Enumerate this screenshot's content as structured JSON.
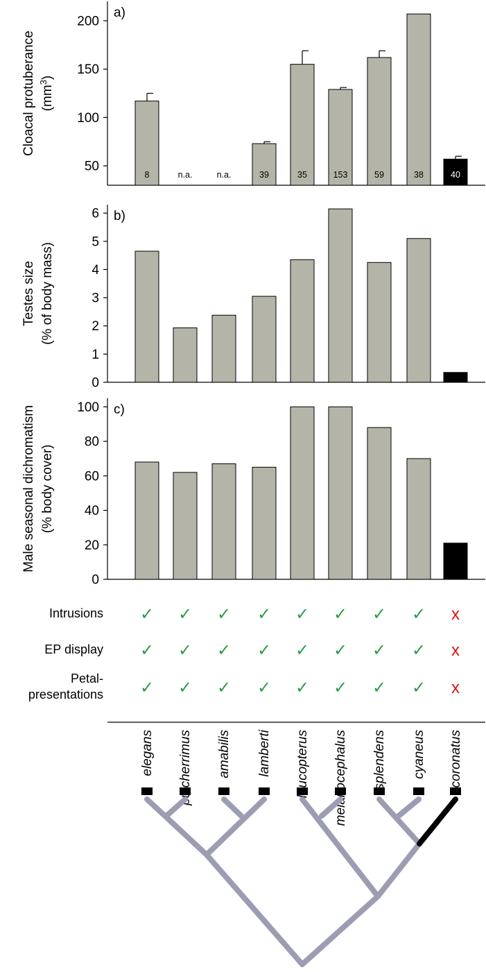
{
  "colors": {
    "bar_default": "#b4b5a8",
    "bar_highlight": "#000000",
    "check": "#2e9a4a",
    "cross": "#e01010",
    "tree": "#9c9cb3"
  },
  "species": [
    "elegans",
    "pulcherrimus",
    "amabilis",
    "lamberti",
    "leucopterus",
    "melanocephalus",
    "splendens",
    "cyaneus",
    "coronatus"
  ],
  "chart_data": [
    {
      "type": "bar",
      "panel_label": "a)",
      "ylabel_lines": [
        "Cloacal protuberance",
        "(mm³)"
      ],
      "ylim": [
        30,
        220
      ],
      "yticks": [
        50,
        100,
        150,
        200
      ],
      "categories": [
        "elegans",
        "pulcherrimus",
        "amabilis",
        "lamberti",
        "leucopterus",
        "melanocephalus",
        "splendens",
        "cyaneus",
        "coronatus"
      ],
      "values": [
        117,
        null,
        null,
        73,
        155,
        129,
        162,
        207,
        57
      ],
      "errors": [
        8,
        null,
        null,
        2,
        14,
        2,
        7,
        null,
        3
      ],
      "sample_labels": [
        "8",
        "n.a.",
        "n.a.",
        "39",
        "35",
        "153",
        "59",
        "38",
        "40"
      ],
      "highlight": [
        false,
        false,
        false,
        false,
        false,
        false,
        false,
        false,
        true
      ]
    },
    {
      "type": "bar",
      "panel_label": "b)",
      "ylabel_lines": [
        "Testes size",
        "(% of body mass)"
      ],
      "ylim": [
        0,
        6.3
      ],
      "yticks": [
        0,
        1,
        2,
        3,
        4,
        5,
        6
      ],
      "categories": [
        "elegans",
        "pulcherrimus",
        "amabilis",
        "lamberti",
        "leucopterus",
        "melanocephalus",
        "splendens",
        "cyaneus",
        "coronatus"
      ],
      "values": [
        4.65,
        1.93,
        2.38,
        3.05,
        4.35,
        6.15,
        4.25,
        5.1,
        0.35
      ],
      "highlight": [
        false,
        false,
        false,
        false,
        false,
        false,
        false,
        false,
        true
      ]
    },
    {
      "type": "bar",
      "panel_label": "c)",
      "ylabel_lines": [
        "Male seasonal dichromatism",
        "(% body cover)"
      ],
      "ylim": [
        0,
        105
      ],
      "yticks": [
        0,
        20,
        40,
        60,
        80,
        100
      ],
      "categories": [
        "elegans",
        "pulcherrimus",
        "amabilis",
        "lamberti",
        "leucopterus",
        "melanocephalus",
        "splendens",
        "cyaneus",
        "coronatus"
      ],
      "values": [
        68,
        62,
        67,
        65,
        100,
        100,
        88,
        70,
        21
      ],
      "highlight": [
        false,
        false,
        false,
        false,
        false,
        false,
        false,
        false,
        true
      ]
    }
  ],
  "traits": [
    {
      "label_lines": [
        "Intrusions"
      ],
      "marks": [
        "✓",
        "✓",
        "✓",
        "✓",
        "✓",
        "✓",
        "✓",
        "✓",
        "x"
      ]
    },
    {
      "label_lines": [
        "EP display"
      ],
      "marks": [
        "✓",
        "✓",
        "✓",
        "✓",
        "✓",
        "✓",
        "✓",
        "✓",
        "x"
      ]
    },
    {
      "label_lines": [
        "Petal-",
        "presentations"
      ],
      "marks": [
        "✓",
        "✓",
        "✓",
        "✓",
        "✓",
        "✓",
        "✓",
        "✓",
        "x"
      ]
    }
  ]
}
